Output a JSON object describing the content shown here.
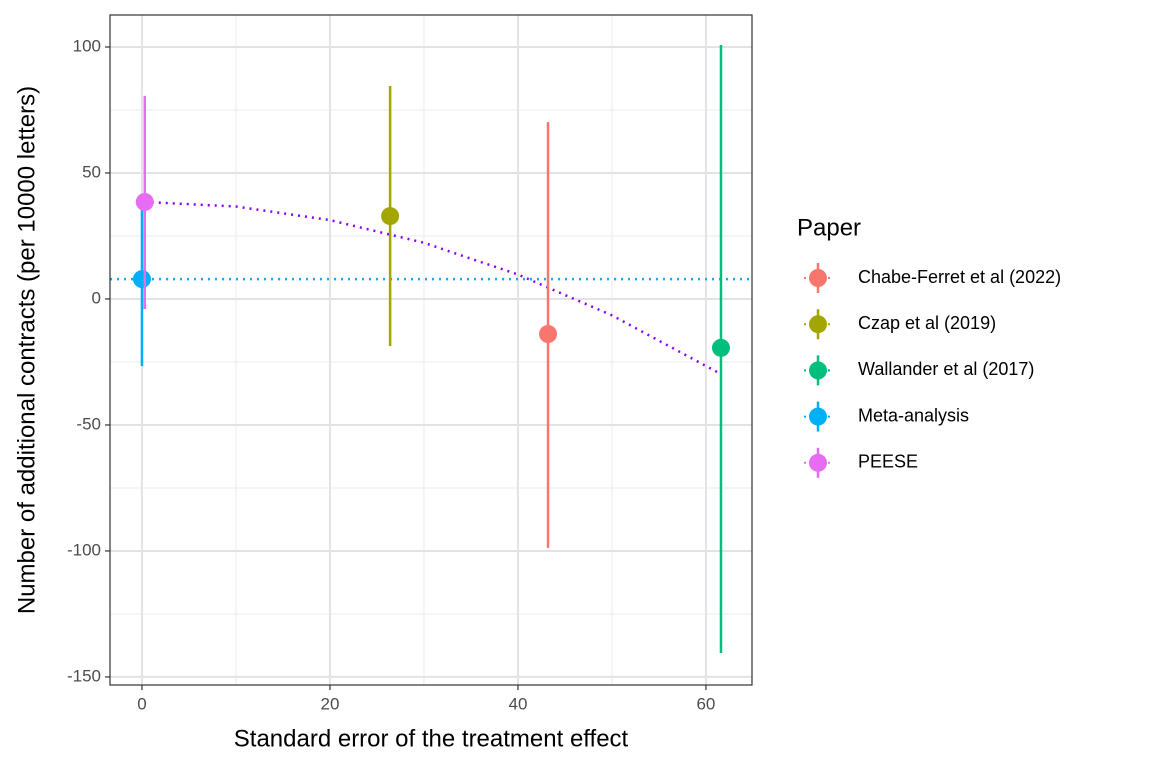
{
  "chart_data": {
    "type": "errorbar",
    "x_label": "Standard error of the treatment effect",
    "y_label": "Number of additional contracts (per 10000 letters)",
    "legend_title": "Paper",
    "legend_position": "right",
    "grid": true,
    "xlim": [
      -3.4,
      64.9
    ],
    "ylim": [
      -153.2,
      112.7
    ],
    "xticks": [
      0,
      20,
      40,
      60
    ],
    "yticks": [
      -150,
      -100,
      -50,
      0,
      50,
      100
    ],
    "series": [
      {
        "name": "Chabe-Ferret et al (2022)",
        "color": "#F8766D",
        "x": [
          43.2
        ],
        "values": [
          -13.9
        ],
        "upper": [
          70.2
        ],
        "lower": [
          -98.8
        ]
      },
      {
        "name": "Czap et al (2019)",
        "color": "#A3A500",
        "x": [
          26.4
        ],
        "values": [
          32.9
        ],
        "upper": [
          84.5
        ],
        "lower": [
          -18.7
        ]
      },
      {
        "name": "Wallander et al (2017)",
        "color": "#00BF7D",
        "x": [
          61.6
        ],
        "values": [
          -19.4
        ],
        "upper": [
          100.8
        ],
        "lower": [
          -140.5
        ]
      },
      {
        "name": "Meta-analysis",
        "color": "#00B0F6",
        "x": [
          0
        ],
        "values": [
          7.9
        ],
        "upper": [
          41.3
        ],
        "lower": [
          -26.6
        ],
        "hline": true
      },
      {
        "name": "PEESE",
        "color": "#E76BF3",
        "x": [
          0.3
        ],
        "values": [
          38.5
        ],
        "upper": [
          80.6
        ],
        "lower": [
          -4
        ]
      }
    ],
    "curve": {
      "color": "#8B00FF",
      "x": [
        0.3,
        10,
        20,
        30,
        40,
        50,
        61.6
      ],
      "y": [
        38.5,
        36.7,
        31.3,
        22.3,
        9.7,
        -6.5,
        -29.8
      ]
    }
  }
}
